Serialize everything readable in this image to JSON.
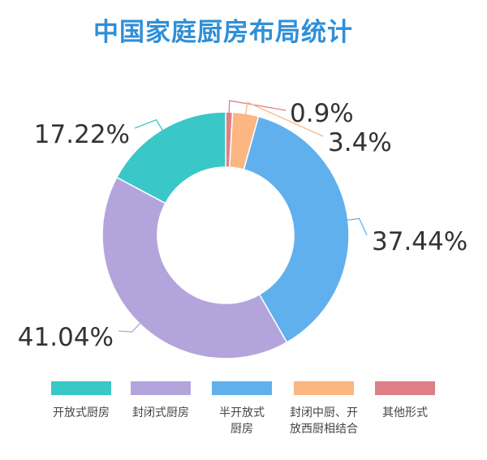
{
  "chart_data": {
    "type": "pie",
    "title": "中国家庭厨房布局统计",
    "donut": true,
    "slices": [
      {
        "name": "其他形式",
        "value": 0.9,
        "label": "0.9%",
        "color": "#de7f87"
      },
      {
        "name": "封闭中厨、开放西厨相结合",
        "value": 3.4,
        "label": "3.4%",
        "color": "#fbb682"
      },
      {
        "name": "半开放式厨房",
        "value": 37.44,
        "label": "37.44%",
        "color": "#60b0ee"
      },
      {
        "name": "封闭式厨房",
        "value": 41.04,
        "label": "41.04%",
        "color": "#b3a5dc"
      },
      {
        "name": "开放式厨房",
        "value": 17.22,
        "label": "17.22%",
        "color": "#3ac7c7"
      }
    ],
    "legend": [
      {
        "label": "开放式厨房",
        "color": "#3ac7c7"
      },
      {
        "label": "封闭式厨房",
        "color": "#b3a5dc"
      },
      {
        "label": "半开放式\n厨房",
        "color": "#60b0ee"
      },
      {
        "label": "封闭中厨、开\n放西厨相结合",
        "color": "#fbb682"
      },
      {
        "label": "其他形式",
        "color": "#de7f87"
      }
    ],
    "legend_position": "bottom"
  }
}
